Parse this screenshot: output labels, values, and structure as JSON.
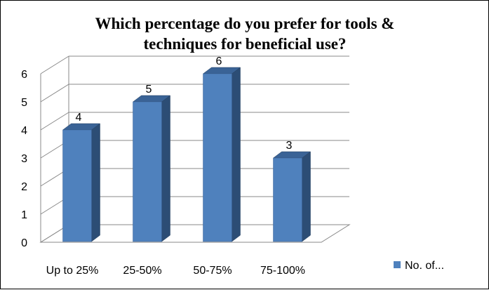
{
  "chart_data": {
    "type": "bar",
    "title": "Which percentage do you prefer for tools & techniques for beneficial use?",
    "title_lines": [
      "Which percentage do you prefer for tools &",
      "techniques for beneficial use?"
    ],
    "categories": [
      "Up to 25%",
      "25-50%",
      "50-75%",
      "75-100%"
    ],
    "series": [
      {
        "name": "No. of...",
        "values": [
          4,
          5,
          6,
          3
        ],
        "color": "#4F81BD"
      }
    ],
    "data_labels": [
      "4",
      "5",
      "6",
      "3"
    ],
    "ylim": [
      0,
      6
    ],
    "yticks": [
      0,
      1,
      2,
      3,
      4,
      5,
      6
    ],
    "grid": true,
    "legend_position": "right",
    "style": "3d-column"
  }
}
